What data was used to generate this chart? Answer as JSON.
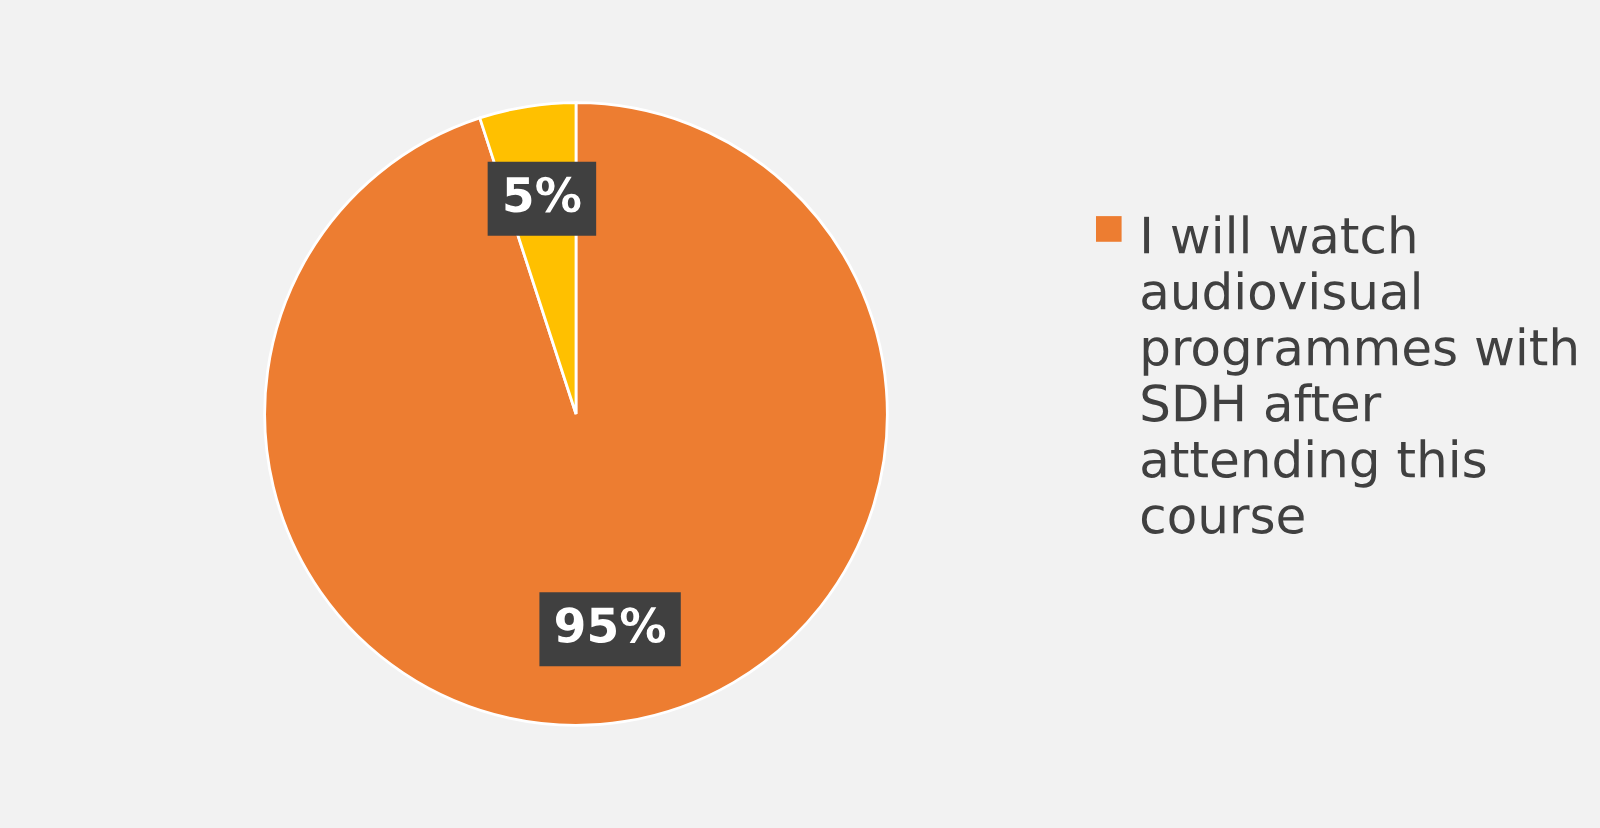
{
  "chart_data": {
    "type": "pie",
    "categories": [
      "I will watch audiovisual programmes with SDH after attending this course",
      null
    ],
    "values": [
      95,
      5
    ],
    "colors": [
      "#ed7d31",
      "#ffc000"
    ],
    "value_labels": [
      "95%",
      "5%"
    ],
    "legend": "right"
  }
}
